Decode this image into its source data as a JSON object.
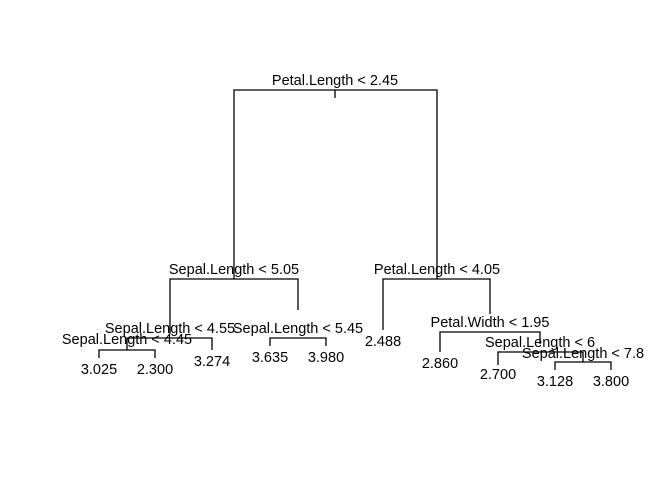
{
  "tree": {
    "splits": {
      "root": "Petal.Length < 2.45",
      "left": "Sepal.Length < 5.05",
      "right": "Petal.Length < 4.05",
      "left_left": "Sepal.Length < 4.55",
      "left_left_left": "Sepal.Length < 4.45",
      "left_right": "Sepal.Length < 5.45",
      "right_right": "Petal.Width < 1.95",
      "right_right_right": "Sepal.Length < 6",
      "right_right_right_right": "Sepal.Length < 7.8"
    },
    "leaves": {
      "l1": "3.025",
      "l2": "2.300",
      "l3": "3.274",
      "l4": "3.635",
      "l5": "3.980",
      "l6": "2.488",
      "l7": "2.860",
      "l8": "2.700",
      "l9": "3.128",
      "l10": "3.800"
    }
  }
}
